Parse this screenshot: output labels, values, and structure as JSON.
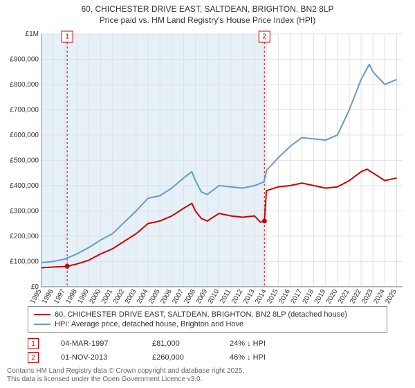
{
  "title_line1": "60, CHICHESTER DRIVE EAST, SALTDEAN, BRIGHTON, BN2 8LP",
  "title_line2": "Price paid vs. HM Land Registry's House Price Index (HPI)",
  "chart": {
    "type": "line",
    "background_color": "#ffffff",
    "grid_color": "#e0e0e0",
    "plot_band_color": "#e6f0f7",
    "x_years": [
      1995,
      1996,
      1997,
      1998,
      1999,
      2000,
      2001,
      2002,
      2003,
      2004,
      2005,
      2006,
      2007,
      2008,
      2009,
      2010,
      2011,
      2012,
      2013,
      2014,
      2015,
      2016,
      2017,
      2018,
      2019,
      2020,
      2021,
      2022,
      2023,
      2024,
      2025
    ],
    "xlim": [
      1995,
      2025.5
    ],
    "ylim": [
      0,
      1000000
    ],
    "ytick_step": 100000,
    "y_labels": [
      "£0",
      "£100,000",
      "£200,000",
      "£300,000",
      "£400,000",
      "£500,000",
      "£600,000",
      "£700,000",
      "£800,000",
      "£900,000",
      "£1M"
    ],
    "series": [
      {
        "name": "price_paid",
        "label": "60, CHICHESTER DRIVE EAST, SALTDEAN, BRIGHTON, BN2 8LP (detached house)",
        "color": "#cc0000",
        "line_width": 2,
        "data": [
          [
            1995,
            75000
          ],
          [
            1996,
            78000
          ],
          [
            1997,
            80000
          ],
          [
            1997.17,
            81000
          ],
          [
            1998,
            90000
          ],
          [
            1999,
            105000
          ],
          [
            2000,
            130000
          ],
          [
            2001,
            150000
          ],
          [
            2002,
            180000
          ],
          [
            2003,
            210000
          ],
          [
            2004,
            250000
          ],
          [
            2005,
            260000
          ],
          [
            2006,
            280000
          ],
          [
            2007,
            310000
          ],
          [
            2007.7,
            330000
          ],
          [
            2008,
            300000
          ],
          [
            2008.5,
            270000
          ],
          [
            2009,
            260000
          ],
          [
            2010,
            290000
          ],
          [
            2011,
            280000
          ],
          [
            2012,
            275000
          ],
          [
            2013,
            280000
          ],
          [
            2013.5,
            255000
          ],
          [
            2013.83,
            260000
          ],
          [
            2014,
            380000
          ],
          [
            2015,
            395000
          ],
          [
            2016,
            400000
          ],
          [
            2017,
            410000
          ],
          [
            2018,
            400000
          ],
          [
            2019,
            390000
          ],
          [
            2020,
            395000
          ],
          [
            2021,
            420000
          ],
          [
            2022,
            455000
          ],
          [
            2022.5,
            465000
          ],
          [
            2023,
            450000
          ],
          [
            2024,
            420000
          ],
          [
            2025,
            430000
          ]
        ]
      },
      {
        "name": "hpi",
        "label": "HPI: Average price, detached house, Brighton and Hove",
        "color": "#6699cc",
        "line_width": 2,
        "data": [
          [
            1995,
            95000
          ],
          [
            1996,
            100000
          ],
          [
            1997,
            110000
          ],
          [
            1998,
            130000
          ],
          [
            1999,
            155000
          ],
          [
            2000,
            185000
          ],
          [
            2001,
            210000
          ],
          [
            2002,
            255000
          ],
          [
            2003,
            300000
          ],
          [
            2004,
            350000
          ],
          [
            2005,
            360000
          ],
          [
            2006,
            390000
          ],
          [
            2007,
            430000
          ],
          [
            2007.7,
            455000
          ],
          [
            2008,
            420000
          ],
          [
            2008.5,
            375000
          ],
          [
            2009,
            365000
          ],
          [
            2010,
            400000
          ],
          [
            2011,
            395000
          ],
          [
            2012,
            390000
          ],
          [
            2013,
            400000
          ],
          [
            2013.8,
            415000
          ],
          [
            2014,
            460000
          ],
          [
            2015,
            510000
          ],
          [
            2016,
            555000
          ],
          [
            2017,
            590000
          ],
          [
            2018,
            585000
          ],
          [
            2019,
            580000
          ],
          [
            2020,
            600000
          ],
          [
            2021,
            700000
          ],
          [
            2022,
            820000
          ],
          [
            2022.7,
            880000
          ],
          [
            2023,
            850000
          ],
          [
            2024,
            800000
          ],
          [
            2025,
            820000
          ]
        ]
      }
    ],
    "markers": [
      {
        "num": "1",
        "year": 1997.17,
        "price": 81000
      },
      {
        "num": "2",
        "year": 2013.83,
        "price": 260000
      }
    ]
  },
  "legend": [
    {
      "color": "#cc0000",
      "label": "60, CHICHESTER DRIVE EAST, SALTDEAN, BRIGHTON, BN2 8LP (detached house)"
    },
    {
      "color": "#6699cc",
      "label": "HPI: Average price, detached house, Brighton and Hove"
    }
  ],
  "marker_rows": [
    {
      "num": "1",
      "date": "04-MAR-1997",
      "price": "£81,000",
      "delta": "24% ↓ HPI"
    },
    {
      "num": "2",
      "date": "01-NOV-2013",
      "price": "£260,000",
      "delta": "46% ↓ HPI"
    }
  ],
  "footer_line1": "Contains HM Land Registry data © Crown copyright and database right 2025.",
  "footer_line2": "This data is licensed under the Open Government Licence v3.0."
}
